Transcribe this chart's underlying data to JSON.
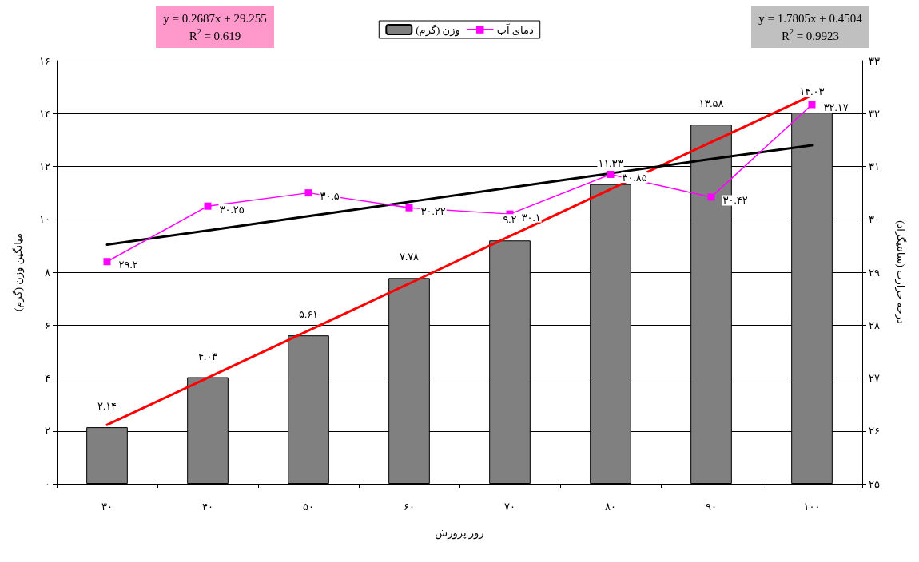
{
  "chart_data": {
    "type": "bar",
    "xlabel": "روز پرورش",
    "ylabel": "میانگین وزن (گرم)",
    "y2label": "درجه حرارت (سانتیگراد)",
    "categories": [
      "۳۰",
      "۴۰",
      "۵۰",
      "۶۰",
      "۷۰",
      "۸۰",
      "۹۰",
      "۱۰۰"
    ],
    "series": [
      {
        "name": "وزن (گرم)",
        "color": "#808080",
        "values": [
          2.14,
          4.03,
          5.61,
          7.78,
          9.2,
          11.33,
          13.58,
          14.03
        ],
        "value_labels": [
          "۲.۱۴",
          "۴.۰۳",
          "۵.۶۱",
          "۷.۷۸",
          "۹.۲",
          "۱۱.۳۳",
          "۱۳.۵۸",
          "۱۴.۰۳"
        ]
      },
      {
        "name": "دمای آب",
        "type": "line",
        "axis": "y2",
        "color": "#ff00ff",
        "marker": "square",
        "values": [
          29.2,
          30.25,
          30.5,
          30.22,
          30.1,
          30.85,
          30.42,
          32.17
        ],
        "value_labels": [
          "۲۹.۲",
          "۳۰.۲۵",
          "۳۰.۵",
          "۳۰.۲۲",
          "۳۰.۱",
          "۳۰.۸۵",
          "۳۰.۴۲",
          "۳۲.۱۷"
        ]
      },
      {
        "type": "line",
        "color": "#ff0000",
        "marker": "none",
        "values": [
          2.23,
          4.01,
          5.79,
          7.57,
          9.36,
          11.14,
          12.92,
          14.69
        ]
      },
      {
        "type": "line",
        "axis": "y2",
        "color": "#000000",
        "marker": "none",
        "values": [
          29.52,
          29.79,
          30.06,
          30.33,
          30.6,
          30.87,
          31.14,
          31.4
        ]
      }
    ],
    "ylim": [
      0,
      16
    ],
    "yticks": [
      {
        "value": 0,
        "label": "۰"
      },
      {
        "value": 2,
        "label": "۲"
      },
      {
        "value": 4,
        "label": "۴"
      },
      {
        "value": 6,
        "label": "۶"
      },
      {
        "value": 8,
        "label": "۸"
      },
      {
        "value": 10,
        "label": "۱۰"
      },
      {
        "value": 12,
        "label": "۱۲"
      },
      {
        "value": 14,
        "label": "۱۴"
      },
      {
        "value": 16,
        "label": "۱۶"
      }
    ],
    "y2lim": [
      25,
      33
    ],
    "y2ticks": [
      {
        "value": 25,
        "label": "۲۵"
      },
      {
        "value": 26,
        "label": "۲۶"
      },
      {
        "value": 27,
        "label": "۲۷"
      },
      {
        "value": 28,
        "label": "۲۸"
      },
      {
        "value": 29,
        "label": "۲۹"
      },
      {
        "value": 30,
        "label": "۳۰"
      },
      {
        "value": 31,
        "label": "۳۱"
      },
      {
        "value": 32,
        "label": "۳۲"
      },
      {
        "value": 33,
        "label": "۳۳"
      }
    ],
    "grid": "y",
    "legend": "top",
    "annotations": [
      "y = 0.2687x + 29.255",
      "R$^{2}$ = 0.619",
      "y = 1.7805x + 0.4504",
      "R$^{2}$ = 0.9923"
    ]
  }
}
